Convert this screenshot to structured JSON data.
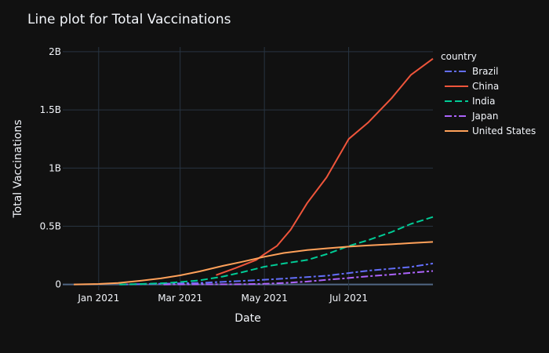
{
  "chart_data": {
    "type": "line",
    "title": "Line plot for Total Vaccinations",
    "xlabel": "Date",
    "ylabel": "Total Vaccinations",
    "xlim": [
      "2020-12-06",
      "2021-08-31"
    ],
    "ylim": [
      -0.05,
      2.04
    ],
    "y_unit": "billions",
    "x_ticks": [
      {
        "date": "2021-01-01",
        "label": "Jan 2021"
      },
      {
        "date": "2021-03-01",
        "label": "Mar 2021"
      },
      {
        "date": "2021-05-01",
        "label": "May 2021"
      },
      {
        "date": "2021-07-01",
        "label": "Jul 2021"
      }
    ],
    "y_ticks": [
      {
        "value": 0,
        "label": "0"
      },
      {
        "value": 0.5,
        "label": "0.5B"
      },
      {
        "value": 1,
        "label": "1B"
      },
      {
        "value": 1.5,
        "label": "1.5B"
      },
      {
        "value": 2,
        "label": "2B"
      }
    ],
    "grid": true,
    "legend": {
      "title": "country",
      "placement": "right"
    },
    "series": [
      {
        "name": "Brazil",
        "color": "#636efa",
        "dash": "dashdot",
        "points": [
          [
            "2021-01-17",
            0
          ],
          [
            "2021-02-15",
            0.006
          ],
          [
            "2021-03-15",
            0.013
          ],
          [
            "2021-04-15",
            0.03
          ],
          [
            "2021-05-15",
            0.05
          ],
          [
            "2021-06-15",
            0.075
          ],
          [
            "2021-07-15",
            0.118
          ],
          [
            "2021-08-15",
            0.15
          ],
          [
            "2021-08-31",
            0.18
          ]
        ]
      },
      {
        "name": "China",
        "color": "#ef553b",
        "dash": "solid",
        "points": [
          [
            "2021-03-27",
            0.08
          ],
          [
            "2021-04-10",
            0.14
          ],
          [
            "2021-04-25",
            0.21
          ],
          [
            "2021-05-01",
            0.26
          ],
          [
            "2021-05-10",
            0.33
          ],
          [
            "2021-05-20",
            0.47
          ],
          [
            "2021-06-01",
            0.7
          ],
          [
            "2021-06-15",
            0.92
          ],
          [
            "2021-07-01",
            1.25
          ],
          [
            "2021-07-15",
            1.39
          ],
          [
            "2021-08-01",
            1.6
          ],
          [
            "2021-08-15",
            1.8
          ],
          [
            "2021-08-31",
            1.94
          ]
        ]
      },
      {
        "name": "India",
        "color": "#00cc96",
        "dash": "dash",
        "points": [
          [
            "2021-01-16",
            0
          ],
          [
            "2021-02-01",
            0.004
          ],
          [
            "2021-02-20",
            0.012
          ],
          [
            "2021-03-15",
            0.035
          ],
          [
            "2021-04-01",
            0.068
          ],
          [
            "2021-04-15",
            0.105
          ],
          [
            "2021-05-01",
            0.152
          ],
          [
            "2021-05-15",
            0.18
          ],
          [
            "2021-06-01",
            0.21
          ],
          [
            "2021-06-15",
            0.26
          ],
          [
            "2021-07-01",
            0.33
          ],
          [
            "2021-07-15",
            0.38
          ],
          [
            "2021-08-01",
            0.45
          ],
          [
            "2021-08-15",
            0.52
          ],
          [
            "2021-08-31",
            0.58
          ]
        ]
      },
      {
        "name": "Japan",
        "color": "#ab63fa",
        "dash": "dashdot",
        "points": [
          [
            "2021-02-17",
            0
          ],
          [
            "2021-03-15",
            0.001
          ],
          [
            "2021-04-15",
            0.002
          ],
          [
            "2021-05-01",
            0.005
          ],
          [
            "2021-05-15",
            0.012
          ],
          [
            "2021-06-01",
            0.025
          ],
          [
            "2021-06-15",
            0.04
          ],
          [
            "2021-07-01",
            0.055
          ],
          [
            "2021-07-15",
            0.07
          ],
          [
            "2021-08-01",
            0.085
          ],
          [
            "2021-08-15",
            0.1
          ],
          [
            "2021-08-31",
            0.115
          ]
        ]
      },
      {
        "name": "United States",
        "color": "#ffa15a",
        "dash": "solid",
        "points": [
          [
            "2020-12-14",
            0
          ],
          [
            "2021-01-01",
            0.004
          ],
          [
            "2021-01-15",
            0.013
          ],
          [
            "2021-02-01",
            0.032
          ],
          [
            "2021-02-15",
            0.052
          ],
          [
            "2021-03-01",
            0.078
          ],
          [
            "2021-03-15",
            0.112
          ],
          [
            "2021-04-01",
            0.16
          ],
          [
            "2021-04-15",
            0.195
          ],
          [
            "2021-05-01",
            0.238
          ],
          [
            "2021-05-15",
            0.27
          ],
          [
            "2021-06-01",
            0.295
          ],
          [
            "2021-06-15",
            0.31
          ],
          [
            "2021-07-01",
            0.325
          ],
          [
            "2021-07-15",
            0.335
          ],
          [
            "2021-08-01",
            0.345
          ],
          [
            "2021-08-15",
            0.355
          ],
          [
            "2021-08-31",
            0.365
          ]
        ]
      }
    ]
  }
}
